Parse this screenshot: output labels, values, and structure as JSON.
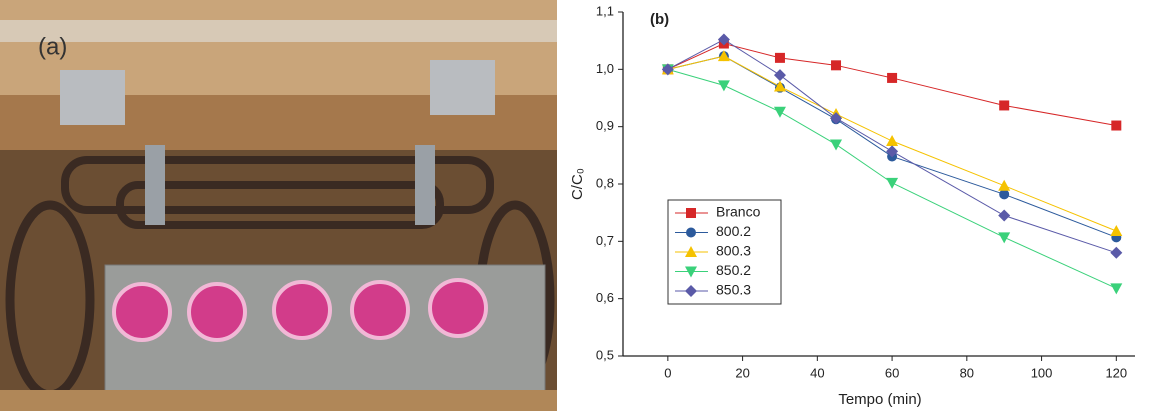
{
  "photo": {
    "label": "(a)"
  },
  "chart_data": {
    "type": "line",
    "title": "(b)",
    "xlabel": "Tempo (min)",
    "ylabel": "C/C₀",
    "x": [
      0,
      15,
      30,
      45,
      60,
      90,
      120
    ],
    "series": [
      {
        "name": "Branco",
        "color": "#d62728",
        "marker": "square",
        "values": [
          1.0,
          1.045,
          1.02,
          1.007,
          0.985,
          0.937,
          0.902
        ]
      },
      {
        "name": "800.2",
        "color": "#2c5a9c",
        "marker": "circle",
        "values": [
          1.0,
          1.023,
          0.968,
          0.913,
          0.848,
          0.782,
          0.707
        ]
      },
      {
        "name": "800.3",
        "color": "#f5c200",
        "marker": "triangle-up",
        "values": [
          1.0,
          1.023,
          0.97,
          0.922,
          0.875,
          0.797,
          0.718
        ]
      },
      {
        "name": "850.2",
        "color": "#3ad17a",
        "marker": "triangle-down",
        "values": [
          1.0,
          0.972,
          0.926,
          0.869,
          0.802,
          0.707,
          0.618
        ]
      },
      {
        "name": "850.3",
        "color": "#5a5aa8",
        "marker": "diamond",
        "values": [
          1.0,
          1.052,
          0.99,
          0.915,
          0.857,
          0.745,
          0.68
        ]
      }
    ],
    "xlim": [
      -12,
      125
    ],
    "xticks": [
      0,
      20,
      40,
      60,
      80,
      100,
      120
    ],
    "ylim": [
      0.5,
      1.1
    ],
    "yticks": [
      {
        "value": 0.5,
        "label": "0,5"
      },
      {
        "value": 0.6,
        "label": "0,6"
      },
      {
        "value": 0.7,
        "label": "0,7"
      },
      {
        "value": 0.8,
        "label": "0,8"
      },
      {
        "value": 0.9,
        "label": "0,9"
      },
      {
        "value": 1.0,
        "label": "1,0"
      },
      {
        "value": 1.1,
        "label": "1,1"
      }
    ],
    "legend": "left",
    "grid": false
  }
}
